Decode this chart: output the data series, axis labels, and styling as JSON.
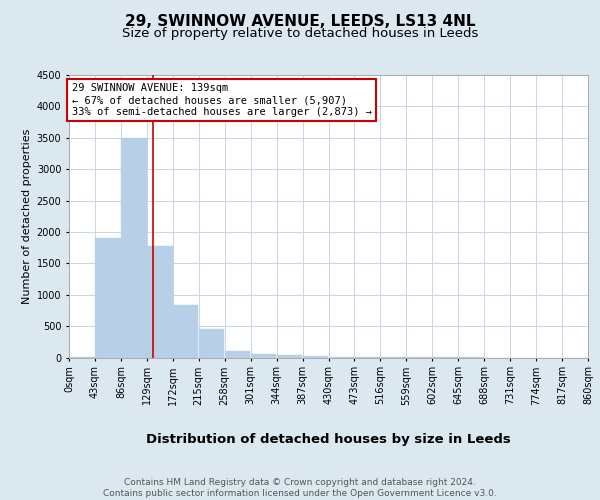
{
  "title": "29, SWINNOW AVENUE, LEEDS, LS13 4NL",
  "subtitle": "Size of property relative to detached houses in Leeds",
  "xlabel": "Distribution of detached houses by size in Leeds",
  "ylabel": "Number of detached properties",
  "bins": [
    "0sqm",
    "43sqm",
    "86sqm",
    "129sqm",
    "172sqm",
    "215sqm",
    "258sqm",
    "301sqm",
    "344sqm",
    "387sqm",
    "430sqm",
    "473sqm",
    "516sqm",
    "559sqm",
    "602sqm",
    "645sqm",
    "688sqm",
    "731sqm",
    "774sqm",
    "817sqm",
    "860sqm"
  ],
  "bin_edges": [
    0,
    43,
    86,
    129,
    172,
    215,
    258,
    301,
    344,
    387,
    430,
    473,
    516,
    559,
    602,
    645,
    688,
    731,
    774,
    817,
    860
  ],
  "bar_heights": [
    5,
    1900,
    3500,
    1775,
    840,
    450,
    110,
    60,
    35,
    20,
    10,
    5,
    3,
    2,
    1,
    1,
    0,
    0,
    0,
    0
  ],
  "bar_color": "#b8cfe8",
  "bar_edgecolor": "#b8cfe8",
  "vline_x": 139,
  "vline_color": "#cc0000",
  "annotation_title": "29 SWINNOW AVENUE: 139sqm",
  "annotation_line1": "← 67% of detached houses are smaller (5,907)",
  "annotation_line2": "33% of semi-detached houses are larger (2,873) →",
  "annotation_box_color": "#ffffff",
  "annotation_border_color": "#cc0000",
  "ylim": [
    0,
    4500
  ],
  "yticks": [
    0,
    500,
    1000,
    1500,
    2000,
    2500,
    3000,
    3500,
    4000,
    4500
  ],
  "grid_color": "#c8d4e8",
  "background_color": "#dce8f0",
  "plot_background": "#ffffff",
  "footer_line1": "Contains HM Land Registry data © Crown copyright and database right 2024.",
  "footer_line2": "Contains public sector information licensed under the Open Government Licence v3.0.",
  "title_fontsize": 11,
  "subtitle_fontsize": 9.5,
  "xlabel_fontsize": 9.5,
  "ylabel_fontsize": 8,
  "tick_fontsize": 7,
  "footer_fontsize": 6.5,
  "annotation_fontsize": 7.5
}
